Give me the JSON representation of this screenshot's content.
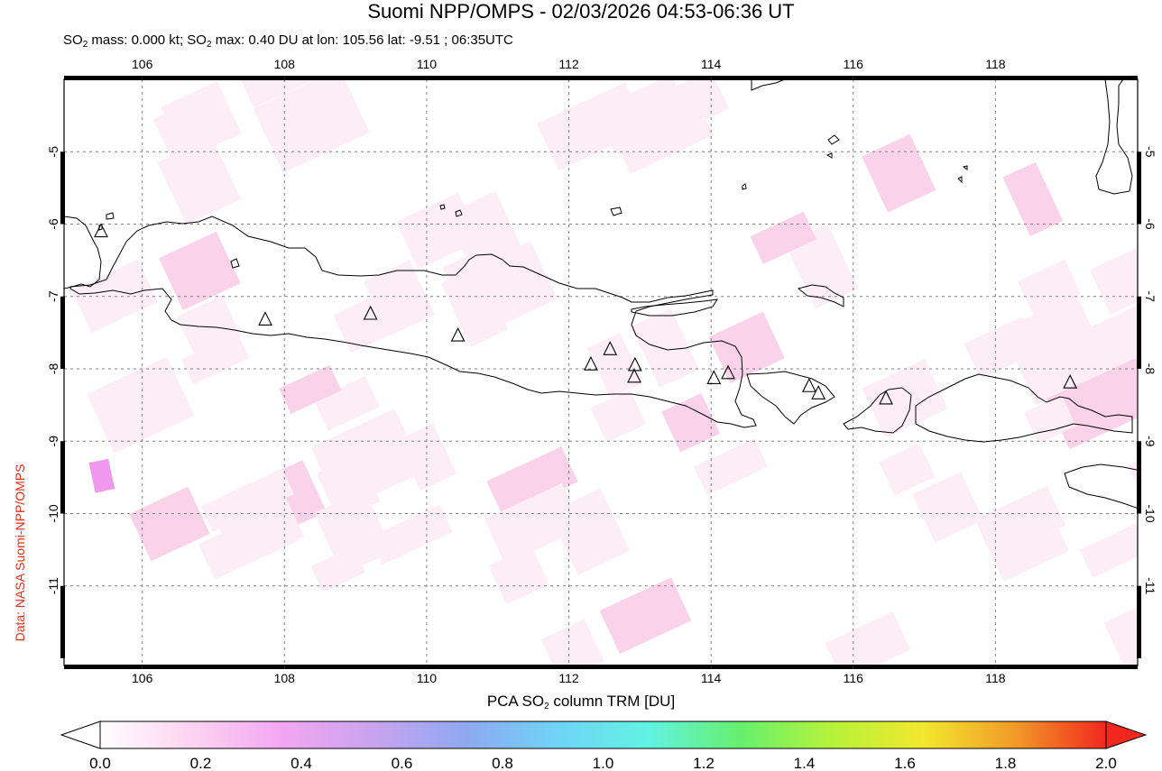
{
  "header": {
    "title": "Suomi NPP/OMPS - 02/03/2026 04:53-06:36 UT",
    "subtitle_part1": "SO",
    "subtitle_sub1": "2",
    "subtitle_part2": " mass: 0.000 kt; SO",
    "subtitle_sub2": "2",
    "subtitle_part3": " max: 0.40 DU at lon: 105.56 lat: -9.51 ; 06:35UTC"
  },
  "credit": "Data: NASA Suomi-NPP/OMPS",
  "map": {
    "lon_ticks": [
      "106",
      "108",
      "110",
      "112",
      "114",
      "116",
      "118"
    ],
    "lat_ticks": [
      "-5",
      "-6",
      "-7",
      "-8",
      "-9",
      "-10",
      "-11"
    ],
    "lon_range": [
      104.9,
      120.0
    ],
    "lat_range": [
      -12.1,
      -4.0
    ],
    "grid": true,
    "volcano_marker": "triangle-outline",
    "volcanoes": [
      {
        "lon": 105.42,
        "lat": -6.1
      },
      {
        "lon": 107.73,
        "lat": -7.32
      },
      {
        "lon": 109.21,
        "lat": -7.24
      },
      {
        "lon": 110.44,
        "lat": -7.54
      },
      {
        "lon": 112.31,
        "lat": -7.94
      },
      {
        "lon": 112.58,
        "lat": -7.73
      },
      {
        "lon": 112.93,
        "lat": -7.95
      },
      {
        "lon": 112.92,
        "lat": -8.11
      },
      {
        "lon": 114.04,
        "lat": -8.13
      },
      {
        "lon": 114.24,
        "lat": -8.06
      },
      {
        "lon": 115.38,
        "lat": -8.24
      },
      {
        "lon": 115.51,
        "lat": -8.34
      },
      {
        "lon": 116.46,
        "lat": -8.41
      },
      {
        "lon": 119.05,
        "lat": -8.19
      }
    ],
    "colors": {
      "background": "#ffffff",
      "low_so2": "#fdeef6",
      "mid_so2": "#fad2ea",
      "peak_so2": "#ee99ee",
      "grid": "#808080",
      "coast": "#000000"
    }
  },
  "colorbar": {
    "title_part1": "PCA SO",
    "title_sub": "2",
    "title_part2": " column TRM [DU]",
    "ticks": [
      "0.0",
      "0.2",
      "0.4",
      "0.6",
      "0.8",
      "1.0",
      "1.2",
      "1.4",
      "1.6",
      "1.8",
      "2.0"
    ],
    "range": [
      0.0,
      2.0
    ],
    "colors": [
      "#ffffff",
      "#fcd3f0",
      "#f2a6f2",
      "#c8a3ee",
      "#8fa8f2",
      "#6fd4f6",
      "#62f2e2",
      "#66f06e",
      "#b5f23a",
      "#f2e82e",
      "#f29a28",
      "#f2281e"
    ]
  }
}
